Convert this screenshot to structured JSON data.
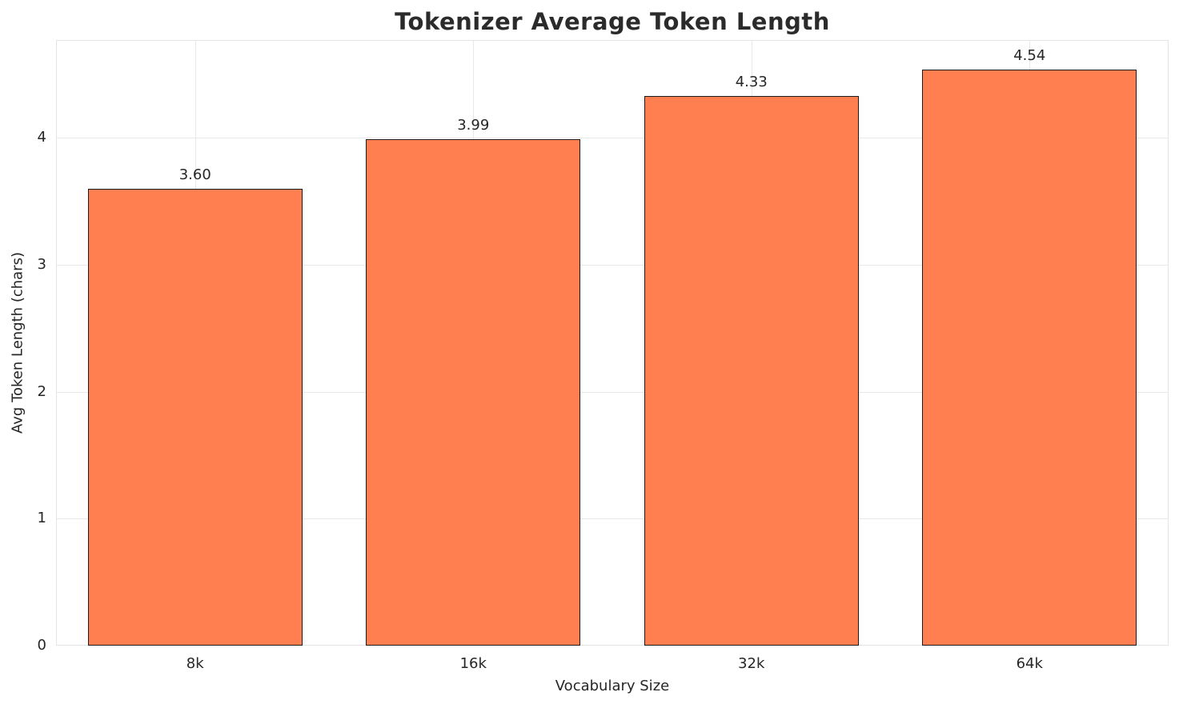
{
  "chart_data": {
    "type": "bar",
    "title": "Tokenizer Average Token Length",
    "xlabel": "Vocabulary Size",
    "ylabel": "Avg Token Length (chars)",
    "categories": [
      "8k",
      "16k",
      "32k",
      "64k"
    ],
    "values": [
      3.6,
      3.99,
      4.33,
      4.54
    ],
    "value_labels": [
      "3.60",
      "3.99",
      "4.33",
      "4.54"
    ],
    "yticks": [
      0,
      1,
      2,
      3,
      4
    ],
    "ylim": [
      0,
      4.77
    ],
    "grid": true,
    "legend": "none",
    "bar_color": "#ff7f50",
    "bar_edge_color": "#1a1a1a",
    "grid_color": "#e8e8e8",
    "text_color": "#262626",
    "background": "#ffffff"
  }
}
